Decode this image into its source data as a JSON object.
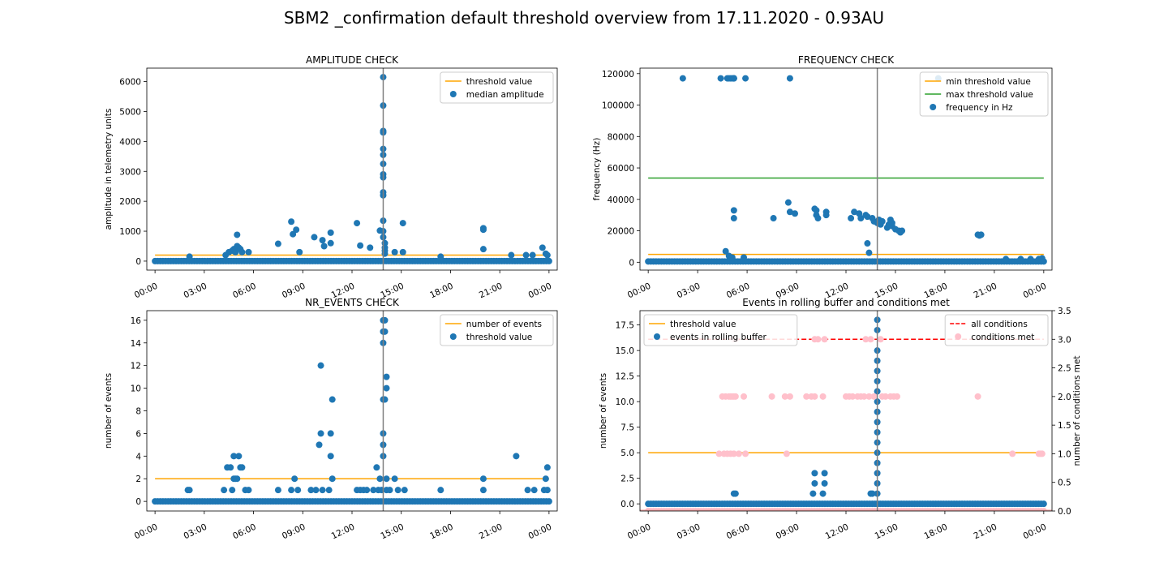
{
  "figure_title": "SBM2 _confirmation default threshold overview from 17.11.2020 - 0.93AU",
  "colors": {
    "orange": "#ffa500",
    "green": "#2ca02c",
    "blue": "#1f77b4",
    "red": "#ff0000",
    "pink": "#ffc0cb",
    "gray": "#808080"
  },
  "chart_data": [
    {
      "id": "amplitude",
      "type": "scatter",
      "title": "AMPLITUDE CHECK",
      "xlabel": "",
      "ylabel": "amplitude in telemetry units",
      "xlim": [
        -0.5,
        24.5
      ],
      "ylim": [
        -300,
        6450
      ],
      "xticks": [
        0,
        3,
        6,
        9,
        12,
        15,
        18,
        21,
        24
      ],
      "xticklabels": [
        "00:00",
        "03:00",
        "06:00",
        "09:00",
        "12:00",
        "15:00",
        "18:00",
        "21:00",
        "00:00"
      ],
      "yticks": [
        0,
        1000,
        2000,
        3000,
        4000,
        5000,
        6000
      ],
      "yticklabels": [
        "0",
        "1000",
        "2000",
        "3000",
        "4000",
        "5000",
        "6000"
      ],
      "vline_x": 13.9,
      "legend_loc": "upper right",
      "lines": [
        {
          "name": "threshold value",
          "color": "#ffa500",
          "style": "solid",
          "x": [
            0,
            24
          ],
          "y": [
            200,
            200
          ]
        }
      ],
      "series": [
        {
          "name": "median amplitude",
          "color": "#1f77b4",
          "baseline": {
            "x_from": 0,
            "x_to": 24,
            "y": 0
          },
          "x": [
            2.1,
            4.3,
            4.5,
            4.7,
            4.8,
            4.9,
            5.0,
            5.0,
            5.1,
            5.2,
            5.3,
            5.7,
            7.5,
            8.3,
            8.4,
            8.6,
            8.8,
            9.7,
            10.2,
            10.3,
            10.7,
            10.7,
            12.3,
            12.5,
            13.1,
            13.7,
            13.9,
            13.9,
            13.9,
            13.9,
            13.9,
            13.9,
            13.9,
            13.9,
            13.9,
            13.9,
            13.9,
            13.9,
            13.9,
            13.9,
            14.0,
            14.0,
            14.0,
            14.0,
            14.6,
            15.1,
            15.1,
            17.4,
            20.0,
            20.0,
            20.0,
            21.7,
            22.6,
            23.0,
            23.6,
            23.8,
            23.9
          ],
          "y": [
            150,
            200,
            300,
            350,
            400,
            300,
            500,
            880,
            450,
            400,
            300,
            300,
            580,
            1320,
            900,
            1050,
            300,
            800,
            700,
            500,
            950,
            600,
            1270,
            520,
            450,
            1020,
            6150,
            5200,
            4350,
            4300,
            3750,
            3550,
            3250,
            2900,
            2800,
            2300,
            2200,
            1350,
            1000,
            800,
            600,
            450,
            350,
            250,
            300,
            1270,
            300,
            150,
            1100,
            1050,
            400,
            200,
            200,
            200,
            450,
            250,
            200
          ]
        }
      ]
    },
    {
      "id": "frequency",
      "type": "scatter",
      "title": "FREQUENCY CHECK",
      "xlabel": "",
      "ylabel": "frequency (Hz)",
      "xlim": [
        -0.5,
        24.5
      ],
      "ylim": [
        -5000,
        123500
      ],
      "xticks": [
        0,
        3,
        6,
        9,
        12,
        15,
        18,
        21,
        24
      ],
      "xticklabels": [
        "00:00",
        "03:00",
        "06:00",
        "09:00",
        "12:00",
        "15:00",
        "18:00",
        "21:00",
        "00:00"
      ],
      "yticks": [
        0,
        20000,
        40000,
        60000,
        80000,
        100000,
        120000
      ],
      "yticklabels": [
        "0",
        "20000",
        "40000",
        "60000",
        "80000",
        "100000",
        "120000"
      ],
      "vline_x": 13.9,
      "legend_loc": "upper right",
      "lines": [
        {
          "name": "min threshold value",
          "color": "#ffa500",
          "style": "solid",
          "x": [
            0,
            24
          ],
          "y": [
            5000,
            5000
          ]
        },
        {
          "name": "max threshold value",
          "color": "#2ca02c",
          "style": "solid",
          "x": [
            0,
            24
          ],
          "y": [
            53600,
            53600
          ]
        }
      ],
      "series": [
        {
          "name": "frequency in Hz",
          "color": "#1f77b4",
          "baseline": {
            "x_from": 0,
            "x_to": 24,
            "y": 500
          },
          "x": [
            2.1,
            4.4,
            4.8,
            4.9,
            5.0,
            5.1,
            5.2,
            5.2,
            5.2,
            5.9,
            8.6,
            17.6,
            4.7,
            4.9,
            5.1,
            5.2,
            5.2,
            5.8,
            7.6,
            8.5,
            8.6,
            8.9,
            10.1,
            10.2,
            10.2,
            10.3,
            10.8,
            10.8,
            12.3,
            12.5,
            12.8,
            12.9,
            13.2,
            13.3,
            13.6,
            13.7,
            13.9,
            14.0,
            14.1,
            14.2,
            14.5,
            14.6,
            14.7,
            14.8,
            14.8,
            15.0,
            15.2,
            15.3,
            15.4,
            20.0,
            20.1,
            20.2,
            13.3,
            13.4,
            21.7,
            22.6,
            23.2,
            23.7,
            23.9
          ],
          "y": [
            117000,
            117000,
            117000,
            117000,
            117000,
            117000,
            117000,
            117000,
            117000,
            117000,
            117000,
            117000,
            7000,
            4000,
            3000,
            33000,
            28000,
            3000,
            28000,
            38000,
            32000,
            31000,
            34000,
            33000,
            30000,
            28000,
            32000,
            30000,
            28000,
            32000,
            31000,
            28000,
            30000,
            29000,
            28000,
            26000,
            25000,
            27000,
            24000,
            26000,
            22000,
            24000,
            27000,
            25000,
            23000,
            21000,
            20000,
            19000,
            20000,
            17500,
            17000,
            17500,
            12000,
            6000,
            2000,
            2000,
            2000,
            2000,
            2500
          ]
        }
      ]
    },
    {
      "id": "nr_events",
      "type": "scatter",
      "title": "NR_EVENTS CHECK",
      "xlabel": "",
      "ylabel": "number of events",
      "xlim": [
        -0.5,
        24.5
      ],
      "ylim": [
        -0.85,
        16.85
      ],
      "xticks": [
        0,
        3,
        6,
        9,
        12,
        15,
        18,
        21,
        24
      ],
      "xticklabels": [
        "00:00",
        "03:00",
        "06:00",
        "09:00",
        "12:00",
        "15:00",
        "18:00",
        "21:00",
        "00:00"
      ],
      "yticks": [
        0,
        2,
        4,
        6,
        8,
        10,
        12,
        14,
        16
      ],
      "yticklabels": [
        "0",
        "2",
        "4",
        "6",
        "8",
        "10",
        "12",
        "14",
        "16"
      ],
      "vline_x": 13.9,
      "legend_loc": "upper right",
      "lines": [
        {
          "name": "number of events",
          "color": "#ffa500",
          "style": "solid",
          "x": [
            0,
            24
          ],
          "y": [
            2,
            2
          ]
        }
      ],
      "series": [
        {
          "name": "threshold value",
          "color": "#1f77b4",
          "baseline": {
            "x_from": 0,
            "x_to": 24,
            "y": 0
          },
          "x": [
            2.0,
            2.1,
            4.2,
            4.4,
            4.6,
            4.7,
            4.8,
            4.8,
            4.9,
            5.0,
            5.1,
            5.2,
            5.3,
            5.5,
            5.7,
            7.5,
            8.3,
            8.5,
            8.7,
            9.5,
            9.8,
            10.0,
            10.1,
            10.1,
            10.2,
            10.6,
            10.7,
            10.7,
            10.8,
            10.8,
            12.3,
            12.5,
            12.7,
            12.9,
            13.3,
            13.5,
            13.6,
            13.7,
            13.8,
            13.9,
            13.9,
            13.9,
            13.9,
            13.9,
            13.9,
            13.9,
            14.0,
            14.0,
            14.0,
            14.1,
            14.1,
            14.1,
            14.1,
            14.3,
            14.6,
            14.8,
            15.2,
            17.4,
            20.0,
            20.0,
            22.0,
            22.7,
            23.1,
            23.7,
            23.8,
            23.9,
            23.9
          ],
          "y": [
            1,
            1,
            1,
            3,
            3,
            1,
            2,
            4,
            2,
            2,
            4,
            3,
            3,
            1,
            1,
            1,
            1,
            2,
            1,
            1,
            1,
            5,
            6,
            12,
            1,
            1,
            4,
            6,
            9,
            2,
            1,
            1,
            1,
            1,
            1,
            3,
            1,
            2,
            1,
            16,
            15,
            14,
            9,
            6,
            5,
            4,
            16,
            15,
            9,
            11,
            10,
            2,
            1,
            1,
            2,
            1,
            1,
            1,
            1,
            2,
            4,
            1,
            1,
            1,
            2,
            3,
            1
          ]
        }
      ]
    },
    {
      "id": "rolling_buffer",
      "type": "scatter",
      "title": "Events in rolling buffer and conditions met",
      "xlabel": "",
      "ylabel": "number of events",
      "ylabel_right": "number of conditions met",
      "xlim": [
        -0.5,
        24.5
      ],
      "ylim": [
        -0.7,
        18.9
      ],
      "ylim_right": [
        0,
        3.5
      ],
      "xticks": [
        0,
        3,
        6,
        9,
        12,
        15,
        18,
        21,
        24
      ],
      "xticklabels": [
        "00:00",
        "03:00",
        "06:00",
        "09:00",
        "12:00",
        "15:00",
        "18:00",
        "21:00",
        "00:00"
      ],
      "yticks": [
        0,
        2.5,
        5,
        7.5,
        10,
        12.5,
        15,
        17.5
      ],
      "yticklabels": [
        "0.0",
        "2.5",
        "5.0",
        "7.5",
        "10.0",
        "12.5",
        "15.0",
        "17.5"
      ],
      "yticks_right": [
        0,
        0.5,
        1,
        1.5,
        2,
        2.5,
        3,
        3.5
      ],
      "yticklabels_right": [
        "0.0",
        "0.5",
        "1.0",
        "1.5",
        "2.0",
        "2.5",
        "3.0",
        "3.5"
      ],
      "vline_x": 13.9,
      "legend_loc": "upper left",
      "legend_right_loc": "upper right",
      "lines": [
        {
          "name": "threshold value",
          "color": "#ffa500",
          "style": "solid",
          "axis": "left",
          "x": [
            0,
            24
          ],
          "y": [
            5,
            5
          ]
        },
        {
          "name": "all conditions",
          "color": "#ff0000",
          "style": "dashed",
          "axis": "right",
          "x": [
            0,
            24
          ],
          "y": [
            3,
            3
          ]
        }
      ],
      "series": [
        {
          "name": "events in rolling buffer",
          "color": "#1f77b4",
          "axis": "left",
          "baseline": {
            "x_from": 0,
            "x_to": 24,
            "y": 0
          },
          "x": [
            5.2,
            5.3,
            10.0,
            10.1,
            10.1,
            10.6,
            10.7,
            10.7,
            13.5,
            13.6,
            13.9,
            13.9,
            13.9,
            13.9,
            13.9,
            13.9,
            13.9,
            13.9,
            13.9,
            13.9,
            13.9,
            13.9,
            13.9,
            13.9,
            13.9,
            13.9,
            13.9,
            13.9
          ],
          "y": [
            1,
            1,
            1,
            2,
            3,
            1,
            2,
            3,
            1,
            1,
            18,
            17,
            15,
            14,
            13,
            12,
            11,
            10,
            9,
            8,
            7,
            6,
            5,
            4,
            3,
            2,
            1,
            0
          ]
        },
        {
          "name": "conditions met",
          "color": "#ffc0cb",
          "axis": "right",
          "baseline": {
            "x_from": 0,
            "x_to": 24,
            "y": 0
          },
          "x": [
            4.5,
            4.7,
            4.9,
            5.0,
            5.1,
            5.2,
            5.3,
            5.8,
            7.5,
            8.3,
            8.6,
            9.6,
            9.9,
            10.1,
            10.6,
            12.0,
            12.2,
            12.4,
            12.7,
            12.9,
            13.1,
            13.4,
            13.7,
            14.2,
            14.4,
            14.7,
            14.9,
            15.1,
            20.0,
            4.3,
            4.6,
            4.8,
            5.0,
            5.2,
            5.5,
            5.9,
            8.4,
            22.1,
            23.7,
            23.8,
            23.9,
            10.1,
            10.3,
            10.7,
            13.2,
            13.5,
            14.1,
            5.2,
            5.3
          ],
          "y": [
            2,
            2,
            2,
            2,
            2,
            2,
            2,
            2,
            2,
            2,
            2,
            2,
            2,
            2,
            2,
            2,
            2,
            2,
            2,
            2,
            2,
            2,
            2,
            2,
            2,
            2,
            2,
            2,
            2,
            1,
            1,
            1,
            1,
            1,
            1,
            1,
            1,
            1,
            1,
            1,
            1,
            3,
            3,
            3,
            3,
            3,
            3,
            3,
            3
          ]
        }
      ]
    }
  ]
}
